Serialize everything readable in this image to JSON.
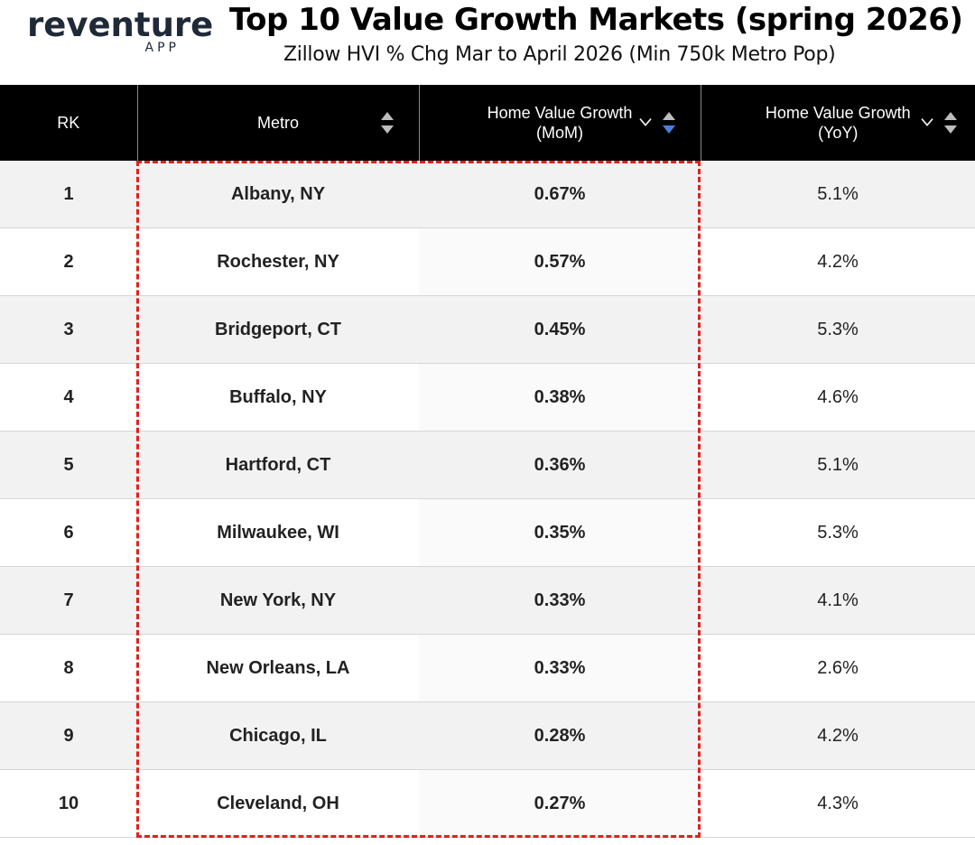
{
  "branding": {
    "logo_word": "reventure",
    "logo_sub": "APP"
  },
  "header": {
    "title": "Top 10 Value Growth Markets (spring 2026)",
    "subtitle": "Zillow HVI % Chg Mar to April 2026 (Min 750k Metro Pop)"
  },
  "colors": {
    "header_bg": "#000000",
    "highlight": "#e02020",
    "active_sort": "#4a7fe0",
    "row_shade": "#f2f2f2"
  },
  "table": {
    "columns": [
      {
        "label": "RK",
        "sub": ""
      },
      {
        "label": "Metro",
        "sub": ""
      },
      {
        "label": "Home Value Growth",
        "sub": "(MoM)"
      },
      {
        "label": "Home Value Growth",
        "sub": "(YoY)"
      }
    ],
    "rows": [
      {
        "rk": "1",
        "metro": "Albany, NY",
        "mom": "0.67%",
        "yoy": "5.1%"
      },
      {
        "rk": "2",
        "metro": "Rochester, NY",
        "mom": "0.57%",
        "yoy": "4.2%"
      },
      {
        "rk": "3",
        "metro": "Bridgeport, CT",
        "mom": "0.45%",
        "yoy": "5.3%"
      },
      {
        "rk": "4",
        "metro": "Buffalo, NY",
        "mom": "0.38%",
        "yoy": "4.6%"
      },
      {
        "rk": "5",
        "metro": "Hartford, CT",
        "mom": "0.36%",
        "yoy": "5.1%"
      },
      {
        "rk": "6",
        "metro": "Milwaukee, WI",
        "mom": "0.35%",
        "yoy": "5.3%"
      },
      {
        "rk": "7",
        "metro": "New York, NY",
        "mom": "0.33%",
        "yoy": "4.1%"
      },
      {
        "rk": "8",
        "metro": "New Orleans, LA",
        "mom": "0.33%",
        "yoy": "2.6%"
      },
      {
        "rk": "9",
        "metro": "Chicago, IL",
        "mom": "0.28%",
        "yoy": "4.2%"
      },
      {
        "rk": "10",
        "metro": "Cleveland, OH",
        "mom": "0.27%",
        "yoy": "4.3%"
      }
    ]
  },
  "icons": {
    "sort": "sort-arrows-icon",
    "filter": "chevron-down-icon"
  }
}
